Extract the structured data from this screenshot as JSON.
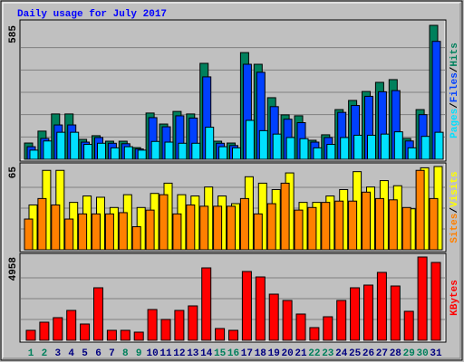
{
  "title": "Daily usage for July 2017",
  "legend_separator": "/",
  "chart_data": [
    {
      "type": "bar",
      "ylim": [
        0,
        585
      ],
      "yticks": [
        585
      ],
      "grid_divisions": 6,
      "series": [
        {
          "name": "Hits",
          "color": "#00805c",
          "values": [
            71,
            123,
            198,
            198,
            87,
            103,
            79,
            79,
            51,
            202,
            154,
            209,
            198,
            419,
            79,
            71,
            466,
            415,
            269,
            194,
            190,
            83,
            107,
            217,
            257,
            296,
            336,
            348,
            91,
            217,
            585
          ]
        },
        {
          "name": "Files",
          "color": "#0040ff",
          "values": [
            55,
            91,
            150,
            150,
            75,
            95,
            70,
            68,
            45,
            182,
            142,
            190,
            180,
            360,
            70,
            60,
            415,
            380,
            230,
            175,
            160,
            75,
            95,
            205,
            235,
            275,
            295,
            300,
            80,
            195,
            515
          ]
        },
        {
          "name": "Pages",
          "color": "#00e0ff",
          "values": [
            40,
            80,
            118,
            118,
            65,
            70,
            50,
            55,
            40,
            78,
            75,
            70,
            70,
            140,
            55,
            50,
            170,
            125,
            110,
            95,
            90,
            50,
            65,
            95,
            105,
            105,
            110,
            120,
            50,
            100,
            118
          ]
        }
      ]
    },
    {
      "type": "bar",
      "ylim": [
        0,
        65
      ],
      "yticks": [
        65
      ],
      "grid_divisions": 4,
      "series": [
        {
          "name": "Visits",
          "color": "#ffff00",
          "values": [
            35,
            62,
            62,
            37,
            42,
            41,
            33,
            43,
            33,
            44,
            52,
            43,
            42,
            49,
            42,
            36,
            57,
            52,
            47,
            60,
            37,
            37,
            42,
            47,
            61,
            49,
            54,
            50,
            32,
            64,
            65
          ]
        },
        {
          "name": "Sites",
          "color": "#ff8000",
          "values": [
            24,
            40,
            35,
            24,
            28,
            28,
            28,
            29,
            18,
            31,
            43,
            28,
            35,
            34,
            34,
            34,
            40,
            28,
            36,
            52,
            31,
            33,
            37,
            38,
            38,
            45,
            40,
            39,
            33,
            62,
            40
          ]
        }
      ]
    },
    {
      "type": "bar",
      "ylim": [
        0,
        4958
      ],
      "yticks": [
        4958
      ],
      "grid_divisions": 4,
      "categories": [
        "1",
        "2",
        "3",
        "4",
        "5",
        "6",
        "7",
        "8",
        "9",
        "10",
        "11",
        "12",
        "13",
        "14",
        "15",
        "16",
        "17",
        "18",
        "19",
        "20",
        "21",
        "22",
        "23",
        "24",
        "25",
        "26",
        "27",
        "28",
        "29",
        "30",
        "31"
      ],
      "category_colors": [
        "#00805c",
        "#00805c",
        "#000080",
        "#000080",
        "#000080",
        "#000080",
        "#000080",
        "#00805c",
        "#00805c",
        "#000080",
        "#000080",
        "#000080",
        "#000080",
        "#000080",
        "#00805c",
        "#00805c",
        "#000080",
        "#000080",
        "#000080",
        "#000080",
        "#000080",
        "#00805c",
        "#00805c",
        "#000080",
        "#000080",
        "#000080",
        "#000080",
        "#000080",
        "#00805c",
        "#00805c",
        "#000080"
      ],
      "series": [
        {
          "name": "KBytes",
          "color": "#ff0000",
          "values": [
            593,
            1078,
            1347,
            1778,
            970,
            3126,
            593,
            593,
            485,
            1832,
            1240,
            1778,
            2048,
            4311,
            700,
            593,
            4096,
            3772,
            2748,
            2371,
            1563,
            755,
            1401,
            2371,
            3126,
            3287,
            4042,
            3233,
            1725,
            4958,
            4635
          ]
        }
      ]
    }
  ]
}
